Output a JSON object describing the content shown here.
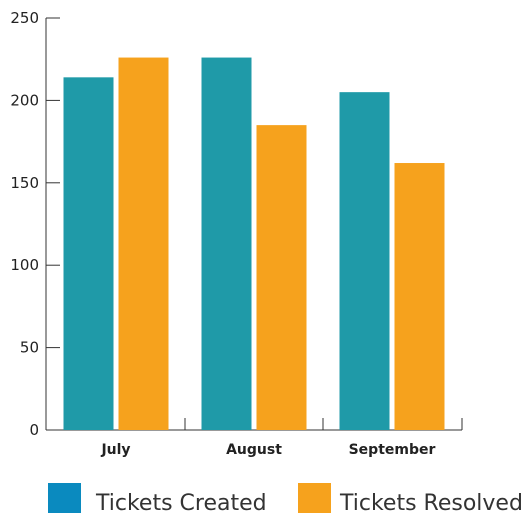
{
  "chart_data": {
    "type": "bar",
    "categories": [
      "July",
      "August",
      "September"
    ],
    "series": [
      {
        "name": "Tickets Created",
        "color": "#1f9aa8",
        "values": [
          214,
          226,
          205
        ]
      },
      {
        "name": "Tickets Resolved",
        "color": "#f6a21d",
        "values": [
          226,
          185,
          162
        ]
      }
    ],
    "ylim": [
      0,
      250
    ],
    "yticks": [
      0,
      50,
      100,
      150,
      200,
      250
    ],
    "legend_placement": "bottom",
    "legend_swatch_colors": [
      "#0a8abf",
      "#f6a21d"
    ],
    "grid": false
  }
}
